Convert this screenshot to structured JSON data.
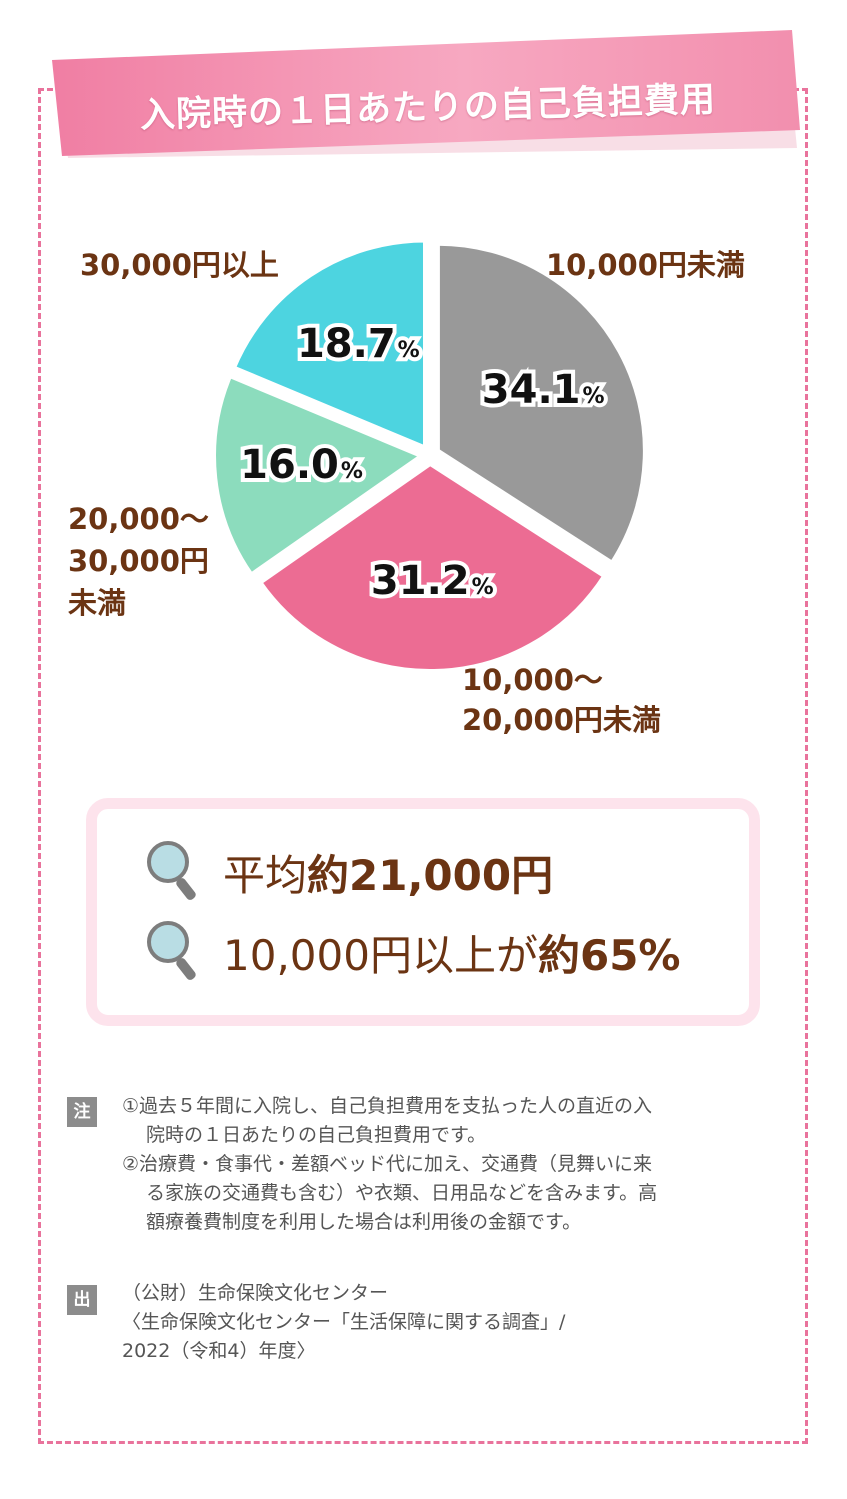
{
  "title": "入院時の１日あたりの自己負担費用",
  "chart_data": {
    "type": "pie",
    "title": "入院時の１日あたりの自己負担費用",
    "slices": [
      {
        "label": "10,000円未満",
        "value": 34.1,
        "display": "34.1",
        "color": "#999999"
      },
      {
        "label": "10,000〜20,000円未満",
        "value": 31.2,
        "display": "31.2",
        "color": "#ec6c93"
      },
      {
        "label": "20,000〜30,000円未満",
        "value": 16.0,
        "display": "16.0",
        "color": "#8cdcbd"
      },
      {
        "label": "30,000円以上",
        "value": 18.7,
        "display": "18.7",
        "color": "#4dd4e0"
      }
    ],
    "percent_sign": "%"
  },
  "labels": {
    "lt10k": "10,000円未満",
    "r10_20_a": "10,000〜",
    "r10_20_b": "20,000円未満",
    "r20_30_a": "20,000〜",
    "r20_30_b": "30,000円",
    "r20_30_c": "未満",
    "ge30k": "30,000円以上"
  },
  "summary": {
    "line1_prefix": "平均",
    "line1_bold": "約21,000円",
    "line2_prefix": "10,000円以上が",
    "line2_bold": "約65%"
  },
  "notes": {
    "badge": "注",
    "n1_a": "①過去５年間に入院し、自己負担費用を支払った人の直近の入",
    "n1_b": "院時の１日あたりの自己負担費用です。",
    "n2_a": "②治療費・食事代・差額ベッド代に加え、交通費（見舞いに来",
    "n2_b": "る家族の交通費も含む）や衣類、日用品などを含みます。高",
    "n2_c": "額療養費制度を利用した場合は利用後の金額です。"
  },
  "source": {
    "badge": "出",
    "line1": "（公財）生命保険文化センター",
    "line2": "〈生命保険文化センター「生活保障に関する調査」/",
    "line3": "2022（令和4）年度〉"
  },
  "colors": {
    "frame": "#e9739c",
    "banner": "#f28fae",
    "text_brown": "#6b3413"
  }
}
